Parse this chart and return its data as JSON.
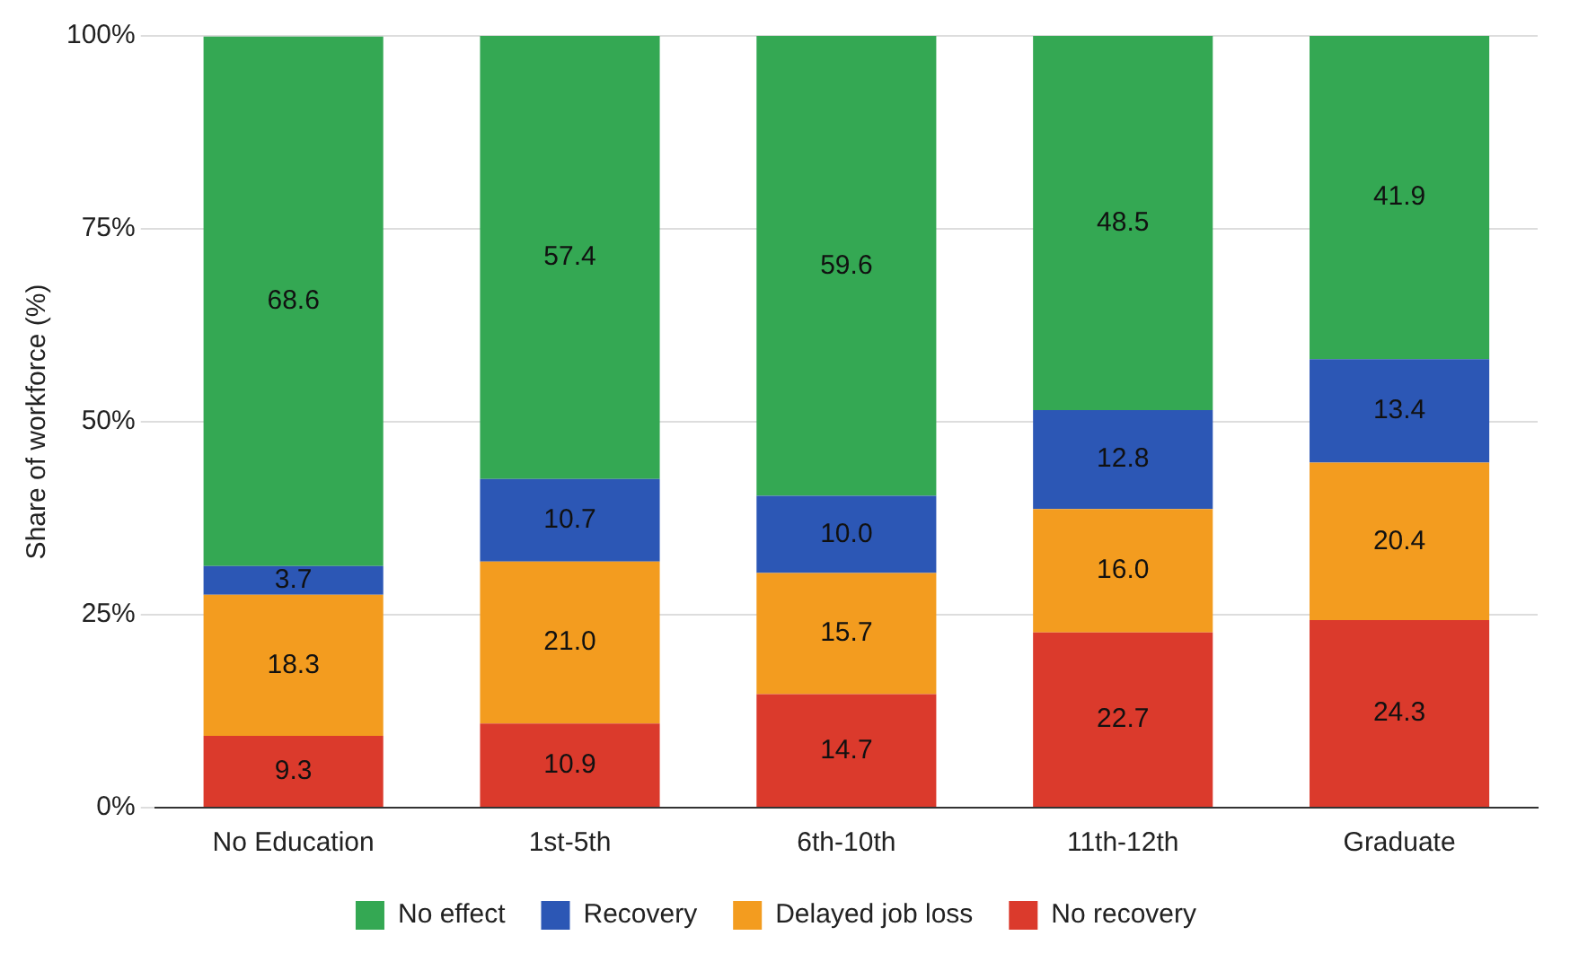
{
  "chart_data": {
    "type": "bar",
    "stacked": true,
    "ylabel": "Share of workforce (%)",
    "categories": [
      "No Education",
      "1st-5th",
      "6th-10th",
      "11th-12th",
      "Graduate"
    ],
    "series": [
      {
        "name": "No recovery",
        "color": "#db3a2c",
        "values": [
          9.3,
          10.9,
          14.7,
          22.7,
          24.3
        ],
        "value_labels": [
          "9.3",
          "10.9",
          "14.7",
          "22.7",
          "24.3"
        ]
      },
      {
        "name": "Delayed job loss",
        "color": "#f39c1f",
        "values": [
          18.3,
          21.0,
          15.7,
          16.0,
          20.4
        ],
        "value_labels": [
          "18.3",
          "21.0",
          "15.7",
          "16.0",
          "20.4"
        ]
      },
      {
        "name": "Recovery",
        "color": "#2c57b5",
        "values": [
          3.7,
          10.7,
          10.0,
          12.8,
          13.4
        ],
        "value_labels": [
          "3.7",
          "10.7",
          "10.0",
          "12.8",
          "13.4"
        ]
      },
      {
        "name": "No effect",
        "color": "#34a853",
        "values": [
          68.6,
          57.4,
          59.6,
          48.5,
          41.9
        ],
        "value_labels": [
          "68.6",
          "57.4",
          "59.6",
          "48.5",
          "41.9"
        ]
      }
    ],
    "ylim": [
      0,
      100
    ],
    "yticks": [
      {
        "value": 0,
        "label": "0%"
      },
      {
        "value": 25,
        "label": "25%"
      },
      {
        "value": 50,
        "label": "50%"
      },
      {
        "value": 75,
        "label": "75%"
      },
      {
        "value": 100,
        "label": "100%"
      }
    ],
    "grid": "y",
    "legend": "bottom"
  }
}
